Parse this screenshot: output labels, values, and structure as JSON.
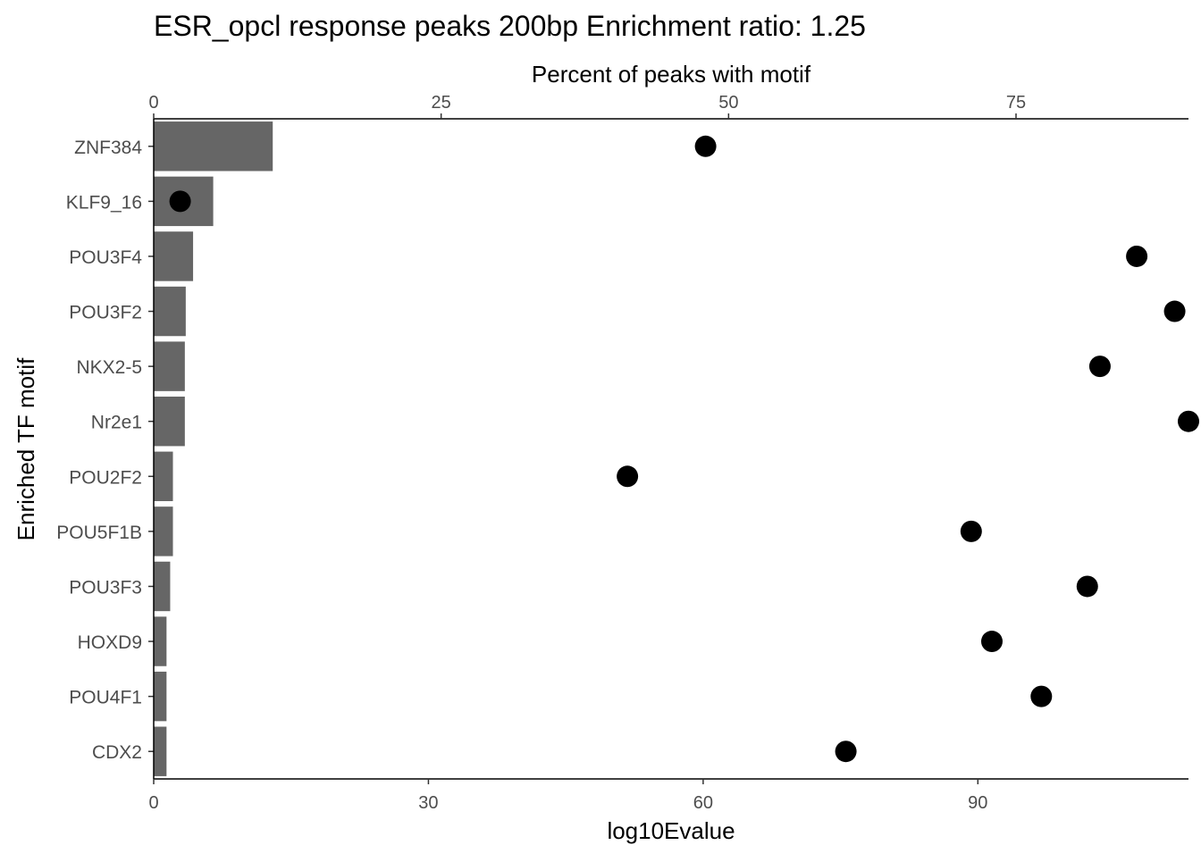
{
  "chart_data": {
    "type": "bar",
    "title": "ESR_opcl response peaks 200bp Enrichment ratio: 1.25",
    "ylabel": "Enriched TF motif",
    "xlabel_bottom": "log10Evalue",
    "xlabel_top": "Percent of peaks with motif",
    "categories": [
      "ZNF384",
      "KLF9_16",
      "POU3F4",
      "POU3F2",
      "NKX2-5",
      "Nr2e1",
      "POU2F2",
      "POU5F1B",
      "POU3F3",
      "HOXD9",
      "POU4F1",
      "CDX2"
    ],
    "series": [
      {
        "kind": "bar",
        "axis": "bottom",
        "values": [
          13.0,
          6.5,
          4.3,
          3.5,
          3.4,
          3.4,
          2.1,
          2.1,
          1.8,
          1.4,
          1.4,
          1.4
        ]
      },
      {
        "kind": "point",
        "axis": "top",
        "values": [
          48.0,
          2.3,
          85.5,
          88.8,
          82.3,
          90.0,
          41.2,
          71.1,
          81.2,
          72.9,
          77.2,
          60.2
        ]
      }
    ],
    "x_bottom": {
      "lim": [
        0,
        113.0
      ],
      "ticks": [
        0,
        30,
        60,
        90
      ]
    },
    "x_top": {
      "lim": [
        0,
        90.0
      ],
      "ticks": [
        0,
        25,
        50,
        75
      ]
    },
    "bar_color": "#666666",
    "point_color": "#000000",
    "grid": false
  }
}
